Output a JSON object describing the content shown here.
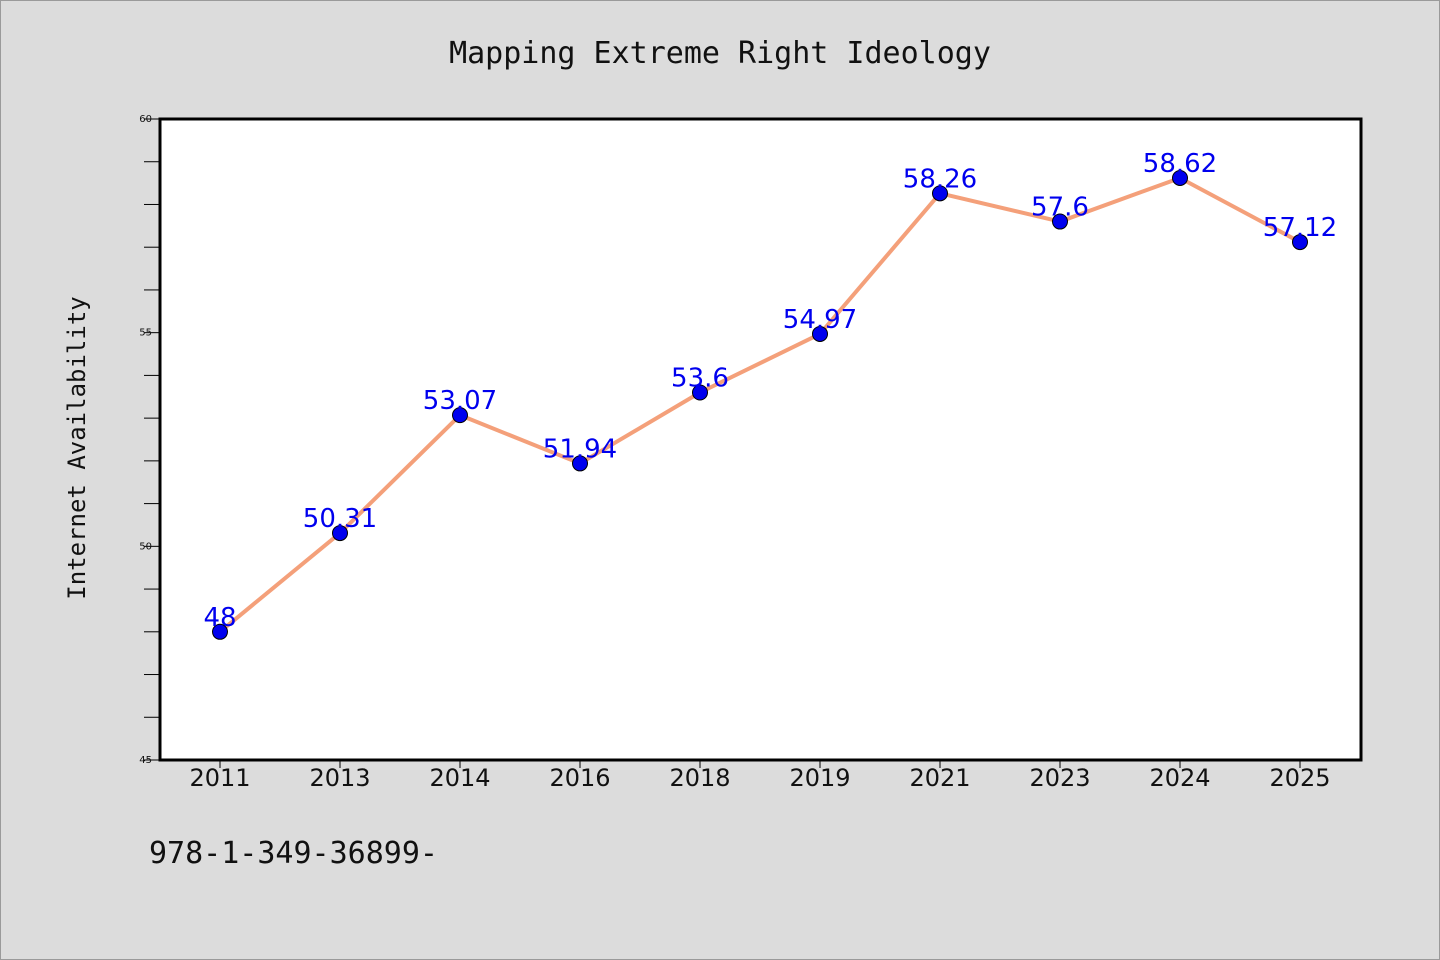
{
  "chart_data": {
    "type": "line",
    "title": "Mapping Extreme Right Ideology",
    "xlabel": "",
    "ylabel": "Internet Availability",
    "categories": [
      "2011",
      "2013",
      "2014",
      "2016",
      "2018",
      "2019",
      "2021",
      "2023",
      "2024",
      "2025"
    ],
    "series": [
      {
        "values": [
          48,
          50.31,
          53.07,
          51.94,
          53.6,
          54.97,
          58.26,
          57.6,
          58.62,
          57.12
        ],
        "data_labels": [
          "48",
          "50.31",
          "53.07",
          "51.94",
          "53.6",
          "54.97",
          "58.26",
          "57.6",
          "58.62",
          "57.12"
        ],
        "line_color": "#f4a07a",
        "marker_color": "#0000ee"
      }
    ],
    "ylim": [
      45,
      60
    ],
    "yticks": [
      "45",
      "50",
      "55",
      "60"
    ],
    "grid": false,
    "legend": "none",
    "label_color": "#0000ee"
  },
  "footer_text": "978-1-349-36899-",
  "colors": {
    "background": "#dcdcdc",
    "plot_background": "#ffffff",
    "frame": "#000000"
  }
}
